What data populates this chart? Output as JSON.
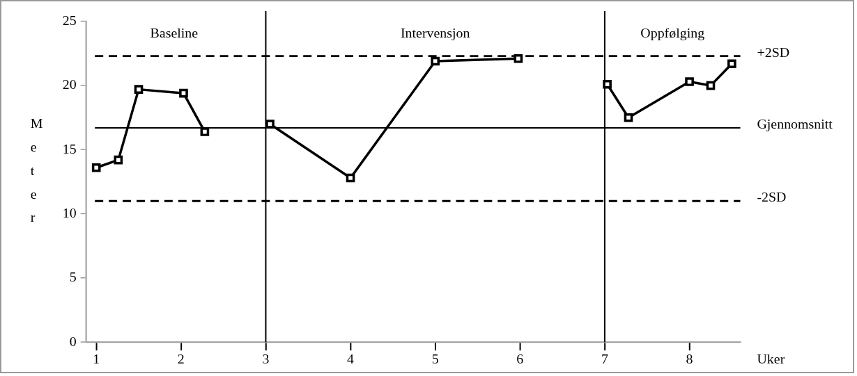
{
  "chart_data": {
    "type": "line",
    "xlabel": "Uker",
    "ylabel": "Meter",
    "xlim": [
      0.88,
      8.6
    ],
    "xticks": [
      1,
      2,
      3,
      4,
      5,
      6,
      7,
      8
    ],
    "ylim": [
      0,
      25
    ],
    "yticks": [
      0,
      5,
      10,
      15,
      20,
      25
    ],
    "series": [
      {
        "color": "#000000",
        "x": [
          1,
          1.26,
          1.5,
          2.03,
          2.28
        ],
        "values": [
          13.6,
          14.2,
          19.7,
          19.4,
          16.4
        ]
      },
      {
        "color": "#000000",
        "x": [
          3.05,
          4,
          5,
          5.98
        ],
        "values": [
          17.0,
          12.8,
          21.9,
          22.1
        ]
      },
      {
        "color": "#000000",
        "x": [
          7.03,
          7.28,
          8,
          8.25,
          8.5
        ],
        "values": [
          20.1,
          17.5,
          20.3,
          20.0,
          21.7
        ]
      }
    ],
    "marker": "square",
    "line_style": "solid",
    "grid": false,
    "legend": false,
    "ref_lines": [
      {
        "axis": "y",
        "value": 22.3,
        "label": "+2SD",
        "color": "#000000",
        "line_style": "dashed"
      },
      {
        "axis": "y",
        "value": 16.7,
        "label": "Gjennomsnitt",
        "color": "#000000",
        "line_style": "solid"
      },
      {
        "axis": "y",
        "value": 11.0,
        "label": "-2SD",
        "color": "#000000",
        "line_style": "dashed"
      },
      {
        "axis": "x",
        "value": 3,
        "color": "#000000",
        "line_style": "solid"
      },
      {
        "axis": "x",
        "value": 7,
        "color": "#000000",
        "line_style": "solid"
      }
    ],
    "annotations": [
      "Baseline",
      "Intervensjon",
      "Oppfølging"
    ]
  }
}
